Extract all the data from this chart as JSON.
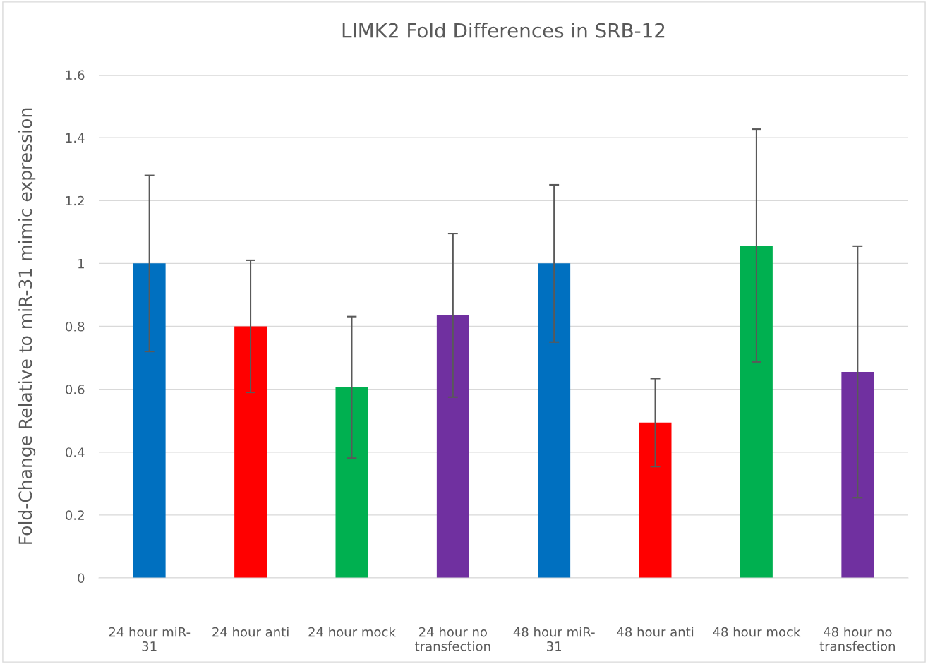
{
  "chart_data": {
    "type": "bar",
    "title": "LIMK2 Fold Differences in SRB-12",
    "ylabel": "Fold-Change Relative to miR-31 mimic expression",
    "categories": [
      "24 hour miR-\n31",
      "24 hour anti",
      "24 hour mock",
      "24 hour no\ntransfection",
      "48 hour miR-\n31",
      "48 hour anti",
      "48 hour mock",
      "48 hour no\ntransfection"
    ],
    "values": [
      1.0,
      0.8,
      0.606,
      0.835,
      1.0,
      0.494,
      1.057,
      0.655
    ],
    "errors": [
      0.28,
      0.21,
      0.225,
      0.26,
      0.25,
      0.14,
      0.37,
      0.4
    ],
    "colors": [
      "#0070c0",
      "#ff0000",
      "#00b050",
      "#7030a0",
      "#0070c0",
      "#ff0000",
      "#00b050",
      "#7030a0"
    ],
    "ylim": [
      0,
      1.6
    ],
    "yticks": [
      0,
      0.2,
      0.4,
      0.6,
      0.8,
      1,
      1.2,
      1.4,
      1.6
    ],
    "grid": "y"
  }
}
